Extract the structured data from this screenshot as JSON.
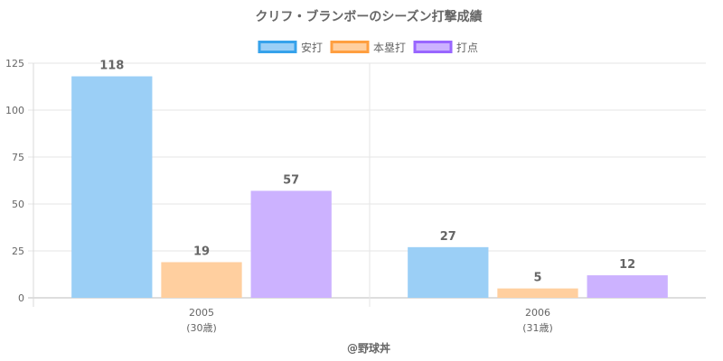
{
  "chart_data": {
    "type": "bar",
    "title": "クリフ・ブランボーのシーズン打撃成績",
    "categories": [
      "2005",
      "2006"
    ],
    "category_sublabels": [
      "(30歳)",
      "(31歳)"
    ],
    "series": [
      {
        "name": "安打",
        "values": [
          118,
          27
        ],
        "color": "#9BCFF6",
        "border": "#36A2EB"
      },
      {
        "name": "本塁打",
        "values": [
          19,
          5
        ],
        "color": "#FFCF9F",
        "border": "#FF9F40"
      },
      {
        "name": "打点",
        "values": [
          57,
          12
        ],
        "color": "#CCB2FF",
        "border": "#9966FF"
      }
    ],
    "ylim": [
      0,
      125
    ],
    "yticks": [
      0,
      25,
      50,
      75,
      100,
      125
    ],
    "grid": true,
    "legend": "top-center",
    "footer": "@野球丼"
  }
}
